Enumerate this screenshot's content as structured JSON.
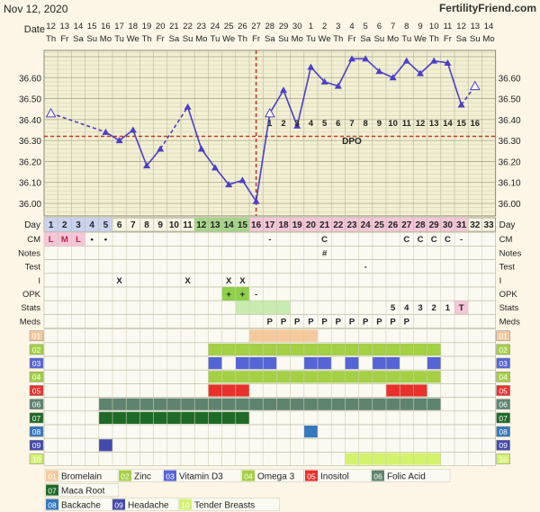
{
  "header": {
    "date": "Nov 12, 2020",
    "brand": "FertilityFriend.com",
    "date_label": "Date"
  },
  "colors": {
    "background": "#fdf6e6",
    "grid_bg": "#f2efd2",
    "line": "#4c3fc6",
    "coverline": "#c23b2a",
    "ovulation": "#c23b2a",
    "pink": "#f4c6d8"
  },
  "top_axis": {
    "dates": [
      "12",
      "13",
      "14",
      "15",
      "16",
      "17",
      "18",
      "19",
      "20",
      "21",
      "22",
      "23",
      "24",
      "25",
      "26",
      "27",
      "28",
      "29",
      "30",
      "1",
      "2",
      "3",
      "4",
      "5",
      "6",
      "7",
      "8",
      "9",
      "10",
      "11",
      "12",
      "13",
      "14"
    ],
    "weekdays": [
      "Th",
      "Fr",
      "Sa",
      "Su",
      "Mo",
      "Tu",
      "We",
      "Th",
      "Fr",
      "Sa",
      "Su",
      "Mo",
      "Tu",
      "We",
      "Th",
      "Fr",
      "Sa",
      "Su",
      "Mo",
      "Tu",
      "We",
      "Th",
      "Fr",
      "Sa",
      "Su",
      "Mo",
      "Tu",
      "We",
      "Th",
      "Fr",
      "Sa",
      "Su",
      "Mo"
    ]
  },
  "chart_data": {
    "type": "line",
    "title": "",
    "y_ticks": [
      "36.60",
      "36.50",
      "36.40",
      "36.30",
      "36.20",
      "36.10",
      "36.00"
    ],
    "ylim": [
      35.94,
      36.73
    ],
    "coverline": 36.32,
    "ovulation_day": 15.5,
    "dpo_label": "DPO",
    "dpo_numbers": [
      "1",
      "2",
      "3",
      "4",
      "5",
      "6",
      "7",
      "8",
      "9",
      "10",
      "11",
      "12",
      "13",
      "14",
      "15",
      "16"
    ],
    "temps": [
      {
        "day": 1,
        "temp": 36.43,
        "marker": "open-triangle"
      },
      {
        "day": 5,
        "temp": 36.34
      },
      {
        "day": 6,
        "temp": 36.3
      },
      {
        "day": 7,
        "temp": 36.35
      },
      {
        "day": 8,
        "temp": 36.18
      },
      {
        "day": 9,
        "temp": 36.26
      },
      {
        "day": 11,
        "temp": 36.46
      },
      {
        "day": 12,
        "temp": 36.26
      },
      {
        "day": 13,
        "temp": 36.17
      },
      {
        "day": 14,
        "temp": 36.09
      },
      {
        "day": 15,
        "temp": 36.11
      },
      {
        "day": 16,
        "temp": 36.01
      },
      {
        "day": 17,
        "temp": 36.43,
        "marker": "open-triangle"
      },
      {
        "day": 18,
        "temp": 36.54
      },
      {
        "day": 19,
        "temp": 36.37
      },
      {
        "day": 20,
        "temp": 36.65
      },
      {
        "day": 21,
        "temp": 36.58
      },
      {
        "day": 22,
        "temp": 36.56
      },
      {
        "day": 23,
        "temp": 36.69
      },
      {
        "day": 24,
        "temp": 36.69
      },
      {
        "day": 25,
        "temp": 36.63
      },
      {
        "day": 26,
        "temp": 36.6
      },
      {
        "day": 27,
        "temp": 36.68
      },
      {
        "day": 28,
        "temp": 36.62
      },
      {
        "day": 29,
        "temp": 36.68
      },
      {
        "day": 30,
        "temp": 36.67
      },
      {
        "day": 31,
        "temp": 36.47
      },
      {
        "day": 32,
        "temp": 36.56,
        "marker": "open-triangle"
      }
    ],
    "dashed_segments": [
      [
        1,
        5
      ],
      [
        9,
        11
      ],
      [
        31,
        32
      ]
    ],
    "days": [
      "1",
      "2",
      "3",
      "4",
      "5",
      "6",
      "7",
      "8",
      "9",
      "10",
      "11",
      "12",
      "13",
      "14",
      "15",
      "16",
      "17",
      "18",
      "19",
      "20",
      "21",
      "22",
      "23",
      "24",
      "25",
      "26",
      "27",
      "28",
      "29",
      "30",
      "31",
      "32",
      "33"
    ],
    "day_cell_colors": {
      "1": "#c9d2ee",
      "2": "#c9d2ee",
      "3": "#c9d2ee",
      "4": "#c9d2ee",
      "5": "#c9d2ee",
      "12": "#a6d48a",
      "13": "#a6d48a",
      "14": "#a6d48a",
      "15": "#a6d48a",
      "16": "#f4c6d8",
      "17": "#f4c6d8",
      "18": "#f4c6d8",
      "19": "#f4c6d8",
      "20": "#f4c6d8",
      "21": "#f4c6d8",
      "22": "#f4c6d8",
      "23": "#f4c6d8",
      "24": "#f4c6d8",
      "25": "#f4c6d8",
      "26": "#f4c6d8",
      "27": "#f4c6d8",
      "28": "#f4c6d8",
      "29": "#f4c6d8",
      "30": "#f4c6d8",
      "31": "#f4c6d8"
    },
    "rows": [
      {
        "label": "CM",
        "cells": {
          "1": "L",
          "2": "M",
          "3": "L",
          "4": "•",
          "5": "•",
          "17": "-",
          "21": "C",
          "27": "C",
          "28": "C",
          "29": "C",
          "30": "C",
          "31": "-"
        },
        "fills": {
          "1": "#f4c6d8",
          "2": "#f4c6d8",
          "3": "#f4c6d8"
        }
      },
      {
        "label": "Notes",
        "cells": {
          "21": "#"
        },
        "fills": {}
      },
      {
        "label": "Test",
        "cells": {
          "24": "-"
        },
        "fills": {}
      },
      {
        "label": "I",
        "cells": {
          "6": "X",
          "11": "X",
          "14": "X",
          "15": "X"
        },
        "fills": {}
      },
      {
        "label": "OPK",
        "cells": {
          "14": "+",
          "15": "+",
          "16": "-"
        },
        "fills": {
          "14": "#8fd04a",
          "15": "#8fd04a"
        }
      },
      {
        "label": "Stats",
        "cells": {
          "26": "5",
          "27": "4",
          "28": "3",
          "29": "2",
          "30": "1",
          "31": "T"
        },
        "fills": {
          "15": "#c8ecb0",
          "16": "#c8ecb0",
          "17": "#c8ecb0",
          "18": "#c8ecb0",
          "31": "#f4c6d8"
        }
      },
      {
        "label": "Meds",
        "cells": {
          "17": "P",
          "18": "P",
          "19": "P",
          "20": "P",
          "21": "P",
          "22": "P",
          "23": "P",
          "24": "P",
          "25": "P",
          "26": "P",
          "27": "P"
        },
        "fills": {}
      }
    ],
    "symptom_rows": [
      {
        "code": "01",
        "color": "#f5c99c",
        "ranges": [
          [
            16,
            20
          ]
        ]
      },
      {
        "code": "02",
        "color": "#a4d045",
        "ranges": [
          [
            13,
            29
          ]
        ]
      },
      {
        "code": "03",
        "color": "#5665d6",
        "ranges": [
          [
            13,
            13
          ],
          [
            15,
            17
          ],
          [
            20,
            21
          ],
          [
            23,
            23
          ],
          [
            25,
            26
          ],
          [
            29,
            29
          ]
        ]
      },
      {
        "code": "04",
        "color": "#a4d045",
        "ranges": [
          [
            13,
            29
          ]
        ]
      },
      {
        "code": "05",
        "color": "#e8312c",
        "ranges": [
          [
            13,
            15
          ],
          [
            26,
            28
          ]
        ]
      },
      {
        "code": "06",
        "color": "#5e8470",
        "ranges": [
          [
            5,
            29
          ]
        ]
      },
      {
        "code": "07",
        "color": "#1f6a28",
        "ranges": [
          [
            5,
            15
          ]
        ]
      },
      {
        "code": "08",
        "color": "#3578bd",
        "ranges": [
          [
            20,
            20
          ]
        ]
      },
      {
        "code": "09",
        "color": "#454bab",
        "ranges": [
          [
            5,
            5
          ]
        ]
      },
      {
        "code": "10",
        "color": "#d3f26e",
        "ranges": [
          [
            23,
            29
          ]
        ]
      }
    ],
    "legend": [
      {
        "code": "01",
        "label": "Bromelain",
        "color": "#f5c99c"
      },
      {
        "code": "02",
        "label": "Zinc",
        "color": "#a4d045"
      },
      {
        "code": "03",
        "label": "Vitamin D3",
        "color": "#5665d6"
      },
      {
        "code": "04",
        "label": "Omega 3",
        "color": "#a4d045"
      },
      {
        "code": "05",
        "label": "Inositol",
        "color": "#e8312c"
      },
      {
        "code": "06",
        "label": "Folic Acid",
        "color": "#5e8470"
      },
      {
        "code": "07",
        "label": "Maca Root",
        "color": "#1f6a28"
      },
      {
        "code": "08",
        "label": "Backache",
        "color": "#3578bd"
      },
      {
        "code": "09",
        "label": "Headache",
        "color": "#454bab"
      },
      {
        "code": "10",
        "label": "Tender Breasts",
        "color": "#d3f26e"
      }
    ],
    "day_row_label": "Day"
  }
}
